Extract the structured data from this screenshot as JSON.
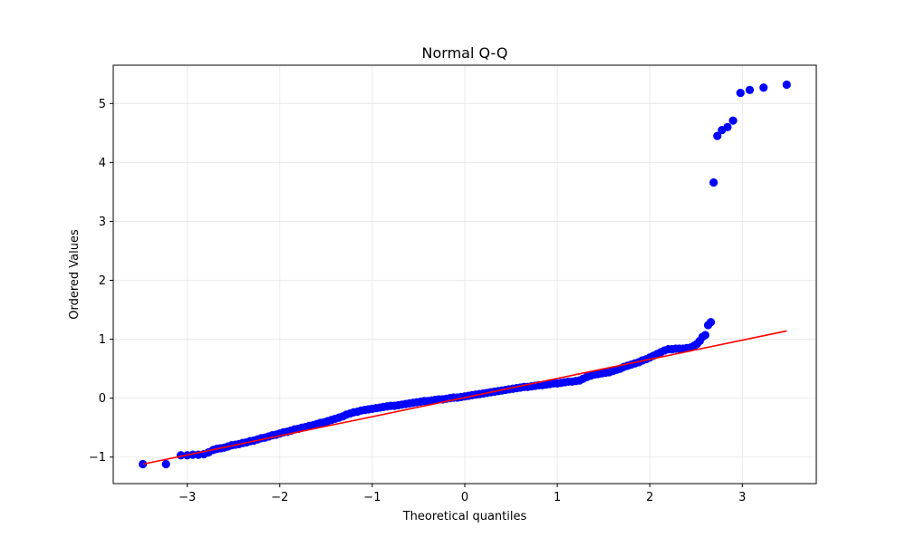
{
  "chart_data": {
    "type": "scatter",
    "title": "Normal Q-Q",
    "xlabel": "Theoretical quantiles",
    "ylabel": "Ordered Values",
    "xlim": [
      -3.8,
      3.8
    ],
    "ylim": [
      -1.45,
      5.65
    ],
    "xticks": [
      -3,
      -2,
      -1,
      0,
      1,
      2,
      3
    ],
    "xtick_labels": [
      "−3",
      "−2",
      "−1",
      "0",
      "1",
      "2",
      "3"
    ],
    "yticks": [
      -1,
      0,
      1,
      2,
      3,
      4,
      5
    ],
    "ytick_labels": [
      "−1",
      "0",
      "1",
      "2",
      "3",
      "4",
      "5"
    ],
    "grid": true,
    "colors": {
      "points": "#0000ff",
      "fit_line": "#ff0000",
      "grid": "#e6e6e6"
    },
    "series": [
      {
        "kind": "points",
        "x": [
          -3.48,
          -3.23,
          -3.07,
          -3.0,
          -2.94,
          -2.88,
          -2.82,
          -2.77,
          -2.72,
          -2.68,
          -2.64,
          -2.6,
          -2.56,
          -2.52,
          -2.48,
          -2.44,
          -2.4,
          -2.36,
          -2.32,
          -2.28,
          -2.24,
          -2.2,
          -2.16,
          -2.12,
          -2.08,
          -2.04,
          -2.0,
          -1.96,
          -1.92,
          -1.88,
          -1.84,
          -1.8,
          -1.76,
          -1.72,
          -1.68,
          -1.64,
          -1.6,
          -1.56,
          -1.52,
          -1.48,
          -1.44,
          -1.4,
          -1.36,
          -1.32,
          -1.28,
          -1.24,
          -1.2,
          -1.16,
          -1.12,
          -1.08,
          -1.04,
          -1.0,
          -0.96,
          -0.92,
          -0.88,
          -0.84,
          -0.8,
          -0.76,
          -0.72,
          -0.68,
          -0.64,
          -0.6,
          -0.56,
          -0.52,
          -0.48,
          -0.44,
          -0.4,
          -0.36,
          -0.32,
          -0.28,
          -0.24,
          -0.2,
          -0.16,
          -0.12,
          -0.08,
          -0.04,
          0.0,
          0.04,
          0.08,
          0.12,
          0.16,
          0.2,
          0.24,
          0.28,
          0.32,
          0.36,
          0.4,
          0.44,
          0.48,
          0.52,
          0.56,
          0.6,
          0.64,
          0.68,
          0.72,
          0.76,
          0.8,
          0.84,
          0.88,
          0.92,
          0.96,
          1.0,
          1.04,
          1.08,
          1.12,
          1.16,
          1.2,
          1.24,
          1.28,
          1.32,
          1.36,
          1.4,
          1.44,
          1.48,
          1.52,
          1.56,
          1.6,
          1.64,
          1.68,
          1.72,
          1.76,
          1.8,
          1.84,
          1.88,
          1.92,
          1.96,
          2.0,
          2.04,
          2.08,
          2.12,
          2.16,
          2.2,
          2.24,
          2.28,
          2.32,
          2.36,
          2.4,
          2.44,
          2.48,
          2.51,
          2.54,
          2.57,
          2.6,
          2.63,
          2.66,
          2.69,
          2.73,
          2.78,
          2.84,
          2.9,
          2.98,
          3.08,
          3.23,
          3.48
        ],
        "y": [
          -1.12,
          -1.12,
          -0.97,
          -0.97,
          -0.96,
          -0.96,
          -0.95,
          -0.92,
          -0.88,
          -0.86,
          -0.85,
          -0.84,
          -0.82,
          -0.8,
          -0.79,
          -0.78,
          -0.76,
          -0.75,
          -0.73,
          -0.72,
          -0.7,
          -0.68,
          -0.67,
          -0.65,
          -0.63,
          -0.62,
          -0.6,
          -0.58,
          -0.57,
          -0.55,
          -0.53,
          -0.52,
          -0.5,
          -0.49,
          -0.47,
          -0.46,
          -0.44,
          -0.42,
          -0.41,
          -0.39,
          -0.37,
          -0.35,
          -0.33,
          -0.31,
          -0.28,
          -0.26,
          -0.24,
          -0.23,
          -0.21,
          -0.2,
          -0.19,
          -0.18,
          -0.17,
          -0.16,
          -0.15,
          -0.14,
          -0.13,
          -0.13,
          -0.12,
          -0.11,
          -0.1,
          -0.09,
          -0.08,
          -0.07,
          -0.06,
          -0.05,
          -0.05,
          -0.04,
          -0.03,
          -0.02,
          -0.02,
          -0.01,
          0.0,
          0.01,
          0.01,
          0.02,
          0.03,
          0.04,
          0.05,
          0.06,
          0.07,
          0.08,
          0.09,
          0.1,
          0.11,
          0.12,
          0.13,
          0.14,
          0.15,
          0.16,
          0.17,
          0.18,
          0.19,
          0.19,
          0.2,
          0.21,
          0.22,
          0.22,
          0.23,
          0.24,
          0.25,
          0.25,
          0.26,
          0.27,
          0.28,
          0.28,
          0.29,
          0.3,
          0.33,
          0.36,
          0.38,
          0.4,
          0.41,
          0.42,
          0.43,
          0.44,
          0.46,
          0.48,
          0.5,
          0.53,
          0.55,
          0.57,
          0.59,
          0.61,
          0.64,
          0.66,
          0.69,
          0.72,
          0.75,
          0.78,
          0.81,
          0.83,
          0.83,
          0.84,
          0.84,
          0.84,
          0.85,
          0.86,
          0.89,
          0.92,
          0.97,
          1.04,
          1.07,
          1.24,
          1.29,
          3.66,
          4.45,
          4.55,
          4.6,
          4.71,
          5.18,
          5.23,
          5.27,
          5.32
        ]
      },
      {
        "kind": "fit-line",
        "x": [
          -3.48,
          3.48
        ],
        "y": [
          -1.12,
          1.14
        ]
      }
    ]
  }
}
